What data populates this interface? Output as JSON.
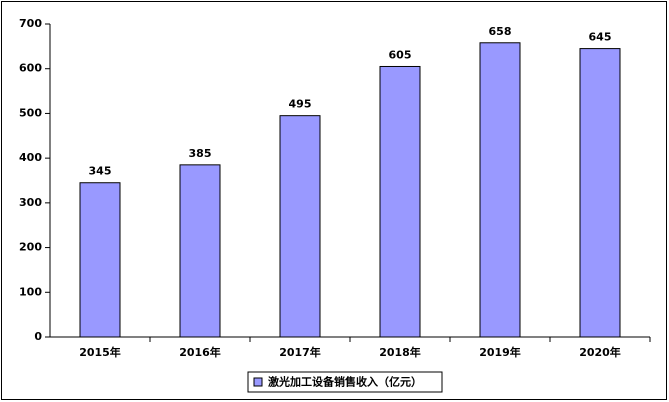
{
  "chart_data": {
    "type": "bar",
    "categories": [
      "2015年",
      "2016年",
      "2017年",
      "2018年",
      "2019年",
      "2020年"
    ],
    "series": [
      {
        "name": "激光加工设备销售收入（亿元）",
        "color": "#9999ff",
        "values": [
          345,
          385,
          495,
          605,
          658,
          645
        ]
      }
    ],
    "ylim": [
      0,
      700
    ],
    "yticks": [
      0,
      100,
      200,
      300,
      400,
      500,
      600,
      700
    ],
    "grid": false,
    "legend": "bottom"
  }
}
